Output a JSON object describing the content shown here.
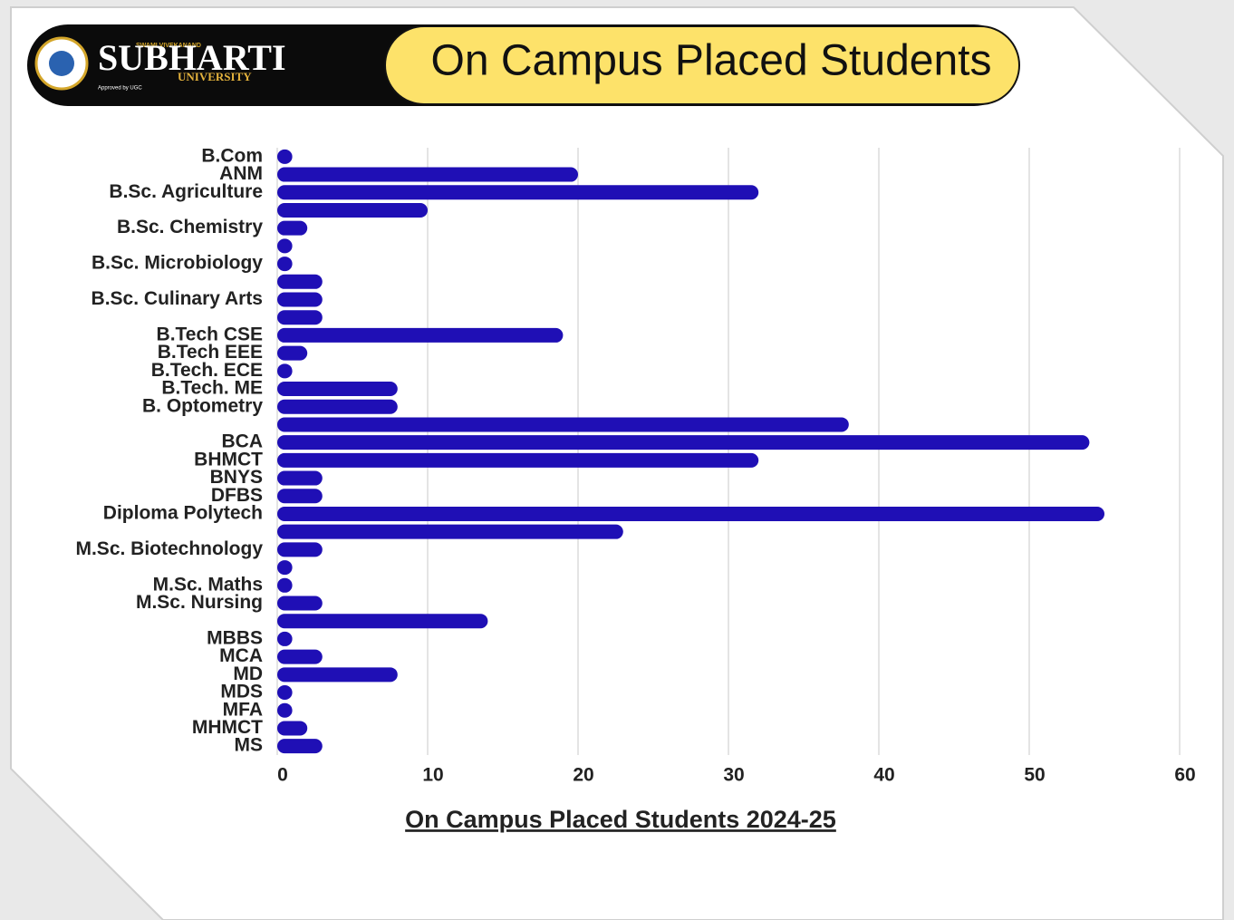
{
  "header": {
    "logo_name": "SUBHARTI",
    "logo_sub": "UNIVERSITY",
    "logo_top": "SWAMI VIVEKANAND",
    "logo_note": "Approved by UGC"
  },
  "chart_data": {
    "type": "barh",
    "title": "On Campus Placed Students",
    "xlabel": "On Campus Placed Students 2024-25",
    "categories": [
      "B.Com",
      "ANM",
      "B.Sc. Agriculture",
      null,
      "B.Sc. Chemistry",
      null,
      "B.Sc. Microbiology",
      null,
      "B.Sc. Culinary Arts",
      null,
      "B.Tech CSE",
      "B.Tech EEE",
      "B.Tech. ECE",
      "B.Tech. ME",
      "B. Optometry",
      null,
      "BCA",
      "BHMCT",
      "BNYS",
      "DFBS",
      "Diploma Polytech",
      null,
      "M.Sc. Biotechnology",
      null,
      "M.Sc. Maths",
      "M.Sc. Nursing",
      null,
      "MBBS",
      "MCA",
      "MD",
      "MDS",
      "MFA",
      "MHMCT",
      "MS"
    ],
    "values": [
      1,
      20,
      32,
      10,
      2,
      1,
      1,
      3,
      3,
      3,
      19,
      2,
      1,
      8,
      8,
      38,
      54,
      32,
      3,
      3,
      55,
      23,
      3,
      1,
      1,
      3,
      14,
      1,
      3,
      8,
      1,
      1,
      2,
      3
    ],
    "color": "#1f0fb5",
    "xlim": [
      0,
      60
    ],
    "xticks": [
      0,
      10,
      20,
      30,
      40,
      50,
      60
    ],
    "grid": true
  }
}
